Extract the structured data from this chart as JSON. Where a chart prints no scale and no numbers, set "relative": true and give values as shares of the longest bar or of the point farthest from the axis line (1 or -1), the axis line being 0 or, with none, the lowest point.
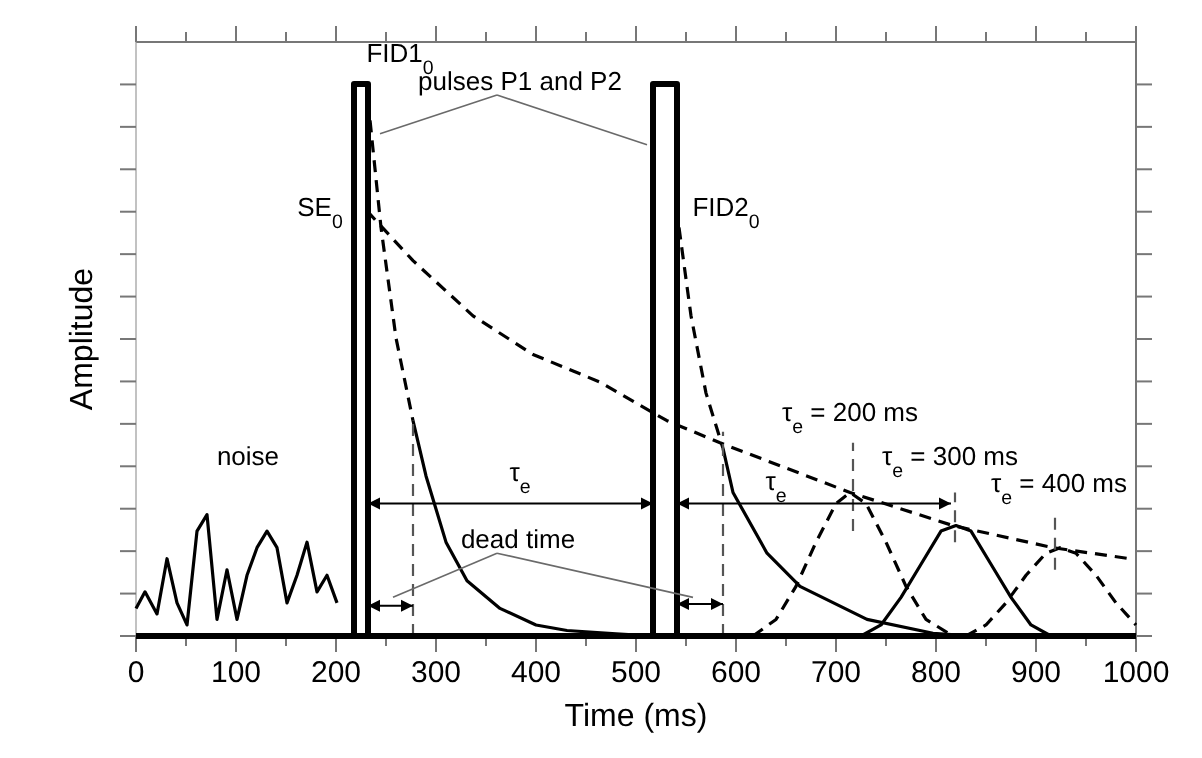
{
  "chart_data": {
    "type": "line",
    "relative": true,
    "xlabel": "Time (ms)",
    "ylabel": "Amplitude",
    "tick_labels": "x",
    "xlim": [
      0,
      1000
    ],
    "xticks": [
      0,
      {
        "value": 50,
        "label": null
      },
      100,
      {
        "value": 150,
        "label": null
      },
      200,
      {
        "value": 250,
        "label": null
      },
      300,
      {
        "value": 350,
        "label": null
      },
      400,
      {
        "value": 450,
        "label": null
      },
      500,
      {
        "value": 550,
        "label": null
      },
      600,
      {
        "value": 650,
        "label": null
      },
      700,
      {
        "value": 750,
        "label": null
      },
      800,
      {
        "value": 850,
        "label": null
      },
      900,
      {
        "value": 950,
        "label": null
      },
      1000
    ],
    "series": [
      {
        "color": "#000000",
        "line_style": "solid",
        "x": [
          0,
          9,
          21,
          31,
          41,
          51,
          61,
          71,
          81,
          91,
          101,
          111,
          121,
          131,
          141,
          151,
          161,
          171,
          181,
          191,
          201
        ],
        "values": [
          0.05,
          0.08,
          0.04,
          0.14,
          0.06,
          0.02,
          0.19,
          0.22,
          0.03,
          0.12,
          0.03,
          0.11,
          0.16,
          0.19,
          0.16,
          0.06,
          0.11,
          0.17,
          0.08,
          0.11,
          0.06
        ]
      },
      {
        "color": "#000000",
        "line_style": "solid",
        "x": [
          218,
          218,
          232,
          232
        ],
        "values": [
          0,
          1,
          1,
          0
        ]
      },
      {
        "color": "#000000",
        "line_style": "solid",
        "x": [
          517,
          517,
          541,
          541
        ],
        "values": [
          0,
          1,
          1,
          0
        ]
      },
      {
        "color": "#000000",
        "line_style": "dashed",
        "x": [
          232,
          245,
          260,
          277
        ],
        "values": [
          0.97,
          0.74,
          0.54,
          0.39
        ]
      },
      {
        "color": "#000000",
        "line_style": "solid",
        "x": [
          277,
          290,
          310,
          331,
          364,
          400,
          431,
          480,
          517
        ],
        "values": [
          0.39,
          0.29,
          0.17,
          0.1,
          0.05,
          0.02,
          0.01,
          0.004,
          0
        ]
      },
      {
        "color": "#000000",
        "line_style": "dashed",
        "x": [
          231,
          277,
          337,
          397,
          464,
          531,
          584,
          714,
          817,
          917,
          994
        ],
        "values": [
          0.77,
          0.68,
          0.58,
          0.51,
          0.46,
          0.39,
          0.35,
          0.26,
          0.2,
          0.16,
          0.14
        ]
      },
      {
        "color": "#000000",
        "line_style": "dashed",
        "x": [
          543,
          555,
          570,
          587
        ],
        "values": [
          0.74,
          0.58,
          0.44,
          0.34
        ]
      },
      {
        "color": "#000000",
        "line_style": "solid",
        "x": [
          587,
          597,
          631,
          664,
          731,
          797,
          837
        ],
        "values": [
          0.34,
          0.26,
          0.15,
          0.09,
          0.03,
          0.005,
          0
        ]
      },
      {
        "color": "#000000",
        "line_style": "dashed",
        "x": [
          617,
          640,
          660,
          680,
          700,
          714,
          730,
          750,
          770,
          790,
          817
        ],
        "values": [
          0,
          0.03,
          0.09,
          0.17,
          0.24,
          0.26,
          0.24,
          0.17,
          0.09,
          0.03,
          0
        ]
      },
      {
        "color": "#000000",
        "line_style": "solid",
        "x": [
          725,
          745,
          765,
          785,
          805,
          820,
          835,
          855,
          875,
          895,
          915
        ],
        "values": [
          0,
          0.02,
          0.07,
          0.13,
          0.19,
          0.2,
          0.19,
          0.13,
          0.07,
          0.02,
          0
        ]
      },
      {
        "color": "#000000",
        "line_style": "dashed",
        "x": [
          830,
          850,
          870,
          890,
          910,
          924,
          940,
          960,
          980,
          1000
        ],
        "values": [
          0,
          0.02,
          0.06,
          0.11,
          0.15,
          0.16,
          0.15,
          0.11,
          0.06,
          0.02
        ]
      },
      {
        "color": "#555555",
        "line_style": "dashed",
        "x": [
          277,
          277
        ],
        "values": [
          0,
          0.39
        ]
      },
      {
        "color": "#555555",
        "line_style": "dashed",
        "x": [
          587,
          587
        ],
        "values": [
          0,
          0.37
        ]
      },
      {
        "color": "#555555",
        "line_style": "dashed",
        "x": [
          717,
          717
        ],
        "values": [
          0.19,
          0.35
        ]
      },
      {
        "color": "#555555",
        "line_style": "dashed",
        "x": [
          819,
          819
        ],
        "values": [
          0.17,
          0.26
        ]
      },
      {
        "color": "#555555",
        "line_style": "dashed",
        "x": [
          919,
          919
        ],
        "values": [
          0.12,
          0.22
        ]
      }
    ],
    "annotations": [
      "FID1$_{0}$",
      "pulses P1 and P2",
      "SE$_{0}$",
      "FID2$_{0}$",
      "noise",
      "τ$_{e}$",
      "τ$_{e}$",
      "dead time",
      "τ$_{e}$ = 200 ms",
      "τ$_{e}$ = 300 ms",
      "τ$_{e}$ = 400 ms"
    ]
  }
}
